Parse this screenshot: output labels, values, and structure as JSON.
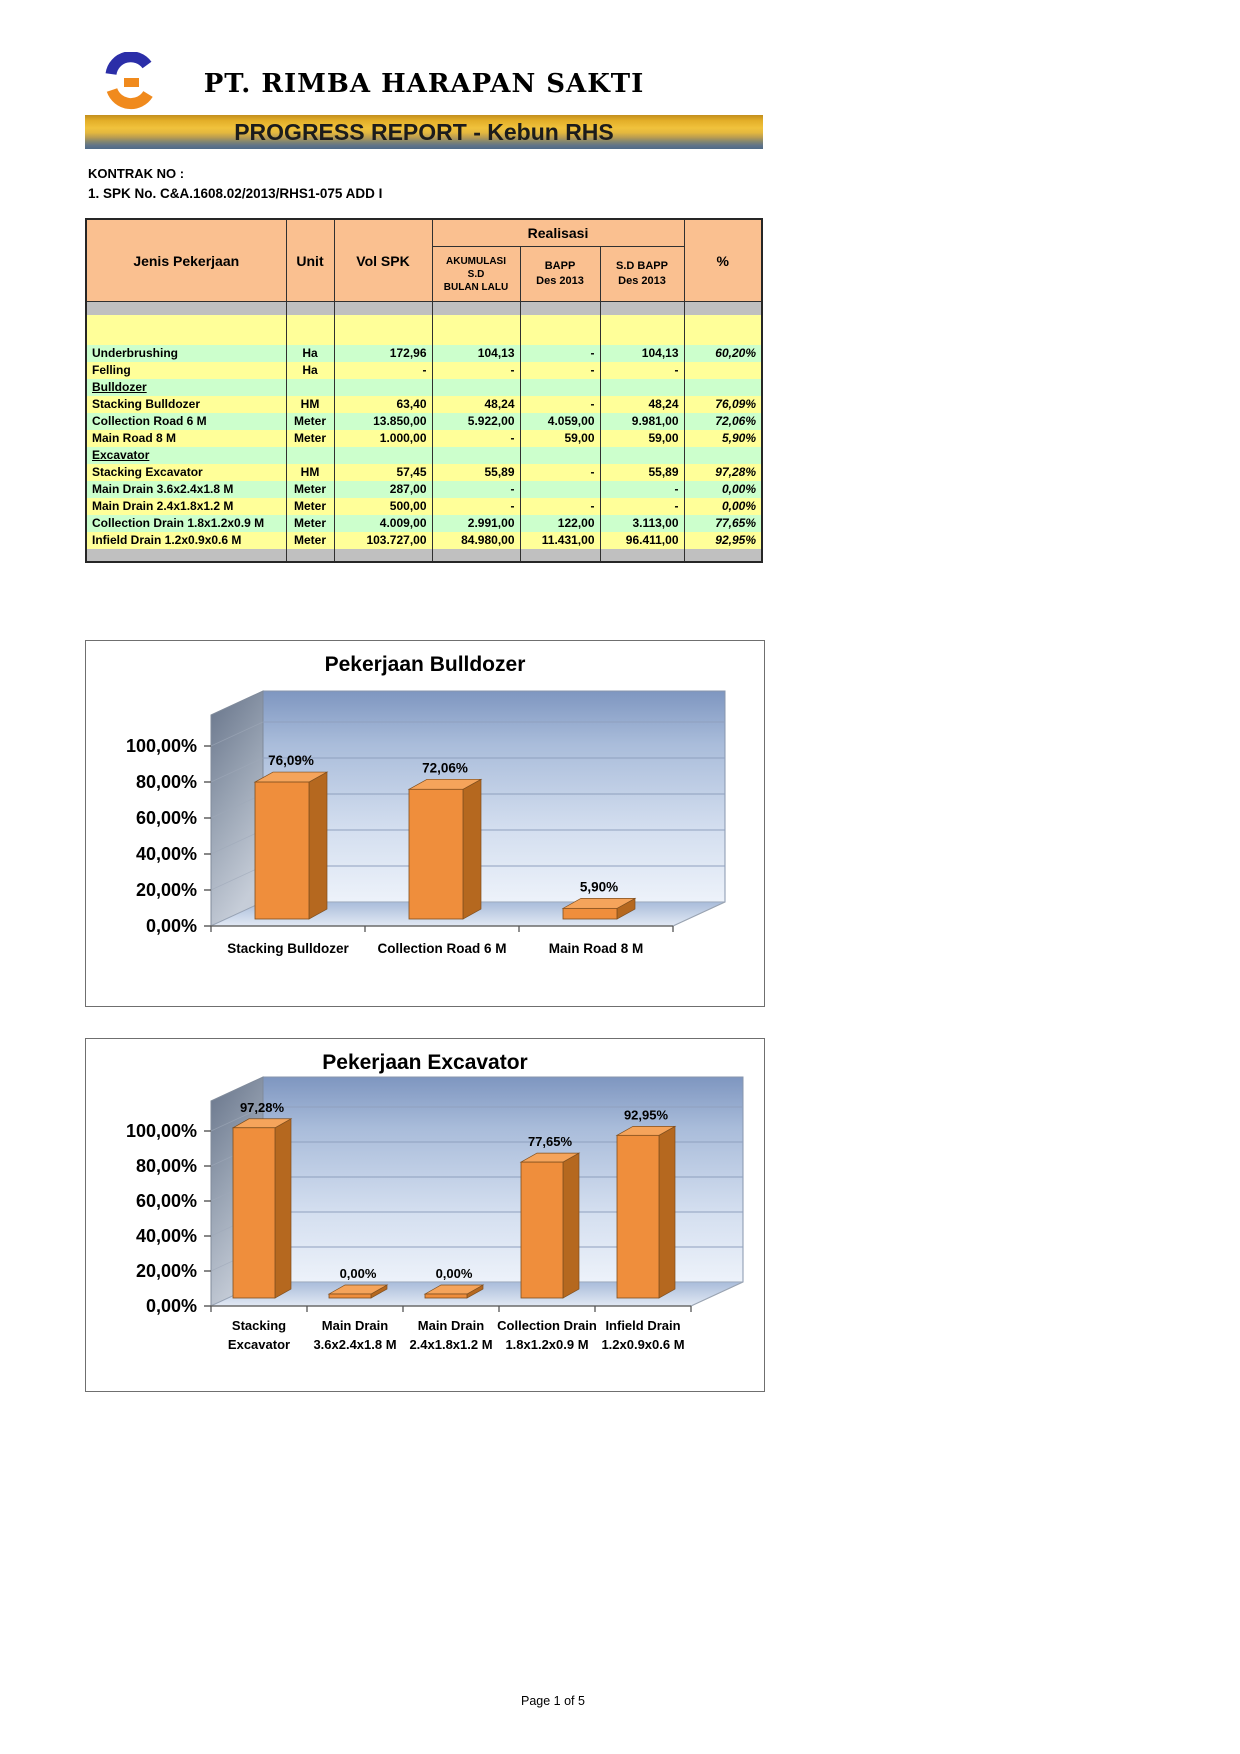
{
  "header": {
    "company": "PT. RIMBA HARAPAN SAKTI",
    "banner": "PROGRESS REPORT - Kebun RHS",
    "kontrak_label": "KONTRAK NO :",
    "kontrak_value": "1. SPK No. C&A.1608.02/2013/RHS1-075 ADD I",
    "logo_icon": "fg-monogram-logo",
    "logo_colors": {
      "blue": "#2B2EA8",
      "orange": "#F08A1D"
    }
  },
  "table": {
    "col_headers": {
      "jenis": "Jenis Pekerjaan",
      "unit": "Unit",
      "vol_spk": "Vol SPK",
      "realisasi": "Realisasi",
      "akumulasi": "AKUMULASI\nS.D\nBULAN LALU",
      "bapp": "BAPP\nDes 2013",
      "sd_bapp": "S.D BAPP\nDes 2013",
      "pct": "%"
    },
    "rows": [
      {
        "type": "empty",
        "label": "",
        "unit": "",
        "vol": "",
        "akum": "",
        "bapp": "",
        "sd": "",
        "pct": "",
        "bg": "yellow"
      },
      {
        "type": "data",
        "label": "Underbrushing",
        "unit": "Ha",
        "vol": "172,96",
        "akum": "104,13",
        "bapp": "-",
        "sd": "104,13",
        "pct": "60,20%",
        "bg": "green"
      },
      {
        "type": "data",
        "label": "Felling",
        "unit": "Ha",
        "vol": "-",
        "akum": "-",
        "bapp": "-",
        "sd": "-",
        "pct": "",
        "bg": "yellow"
      },
      {
        "type": "section",
        "label": "Bulldozer",
        "unit": "",
        "vol": "",
        "akum": "",
        "bapp": "",
        "sd": "",
        "pct": "",
        "bg": "green"
      },
      {
        "type": "data",
        "label": "Stacking Bulldozer",
        "unit": "HM",
        "vol": "63,40",
        "akum": "48,24",
        "bapp": "-",
        "sd": "48,24",
        "pct": "76,09%",
        "bg": "yellow"
      },
      {
        "type": "data",
        "label": "Collection Road 6 M",
        "unit": "Meter",
        "vol": "13.850,00",
        "akum": "5.922,00",
        "bapp": "4.059,00",
        "sd": "9.981,00",
        "pct": "72,06%",
        "bg": "green"
      },
      {
        "type": "data",
        "label": "Main Road 8 M",
        "unit": "Meter",
        "vol": "1.000,00",
        "akum": "-",
        "bapp": "59,00",
        "sd": "59,00",
        "pct": "5,90%",
        "bg": "yellow"
      },
      {
        "type": "section",
        "label": "Excavator",
        "unit": "",
        "vol": "",
        "akum": "",
        "bapp": "",
        "sd": "",
        "pct": "",
        "bg": "green"
      },
      {
        "type": "data",
        "label": "Stacking Excavator",
        "unit": "HM",
        "vol": "57,45",
        "akum": "55,89",
        "bapp": "-",
        "sd": "55,89",
        "pct": "97,28%",
        "bg": "yellow"
      },
      {
        "type": "data",
        "label": "Main Drain 3.6x2.4x1.8 M",
        "unit": "Meter",
        "vol": "287,00",
        "akum": "-",
        "bapp": "",
        "sd": "-",
        "pct": "0,00%",
        "bg": "green"
      },
      {
        "type": "data",
        "label": "Main Drain 2.4x1.8x1.2 M",
        "unit": "Meter",
        "vol": "500,00",
        "akum": "-",
        "bapp": "-",
        "sd": "-",
        "pct": "0,00%",
        "bg": "yellow"
      },
      {
        "type": "data",
        "label": "Collection Drain 1.8x1.2x0.9 M",
        "unit": "Meter",
        "vol": "4.009,00",
        "akum": "2.991,00",
        "bapp": "122,00",
        "sd": "3.113,00",
        "pct": "77,65%",
        "bg": "green"
      },
      {
        "type": "data",
        "label": "Infield Drain 1.2x0.9x0.6 M",
        "unit": "Meter",
        "vol": "103.727,00",
        "akum": "84.980,00",
        "bapp": "11.431,00",
        "sd": "96.411,00",
        "pct": "92,95%",
        "bg": "yellow"
      }
    ]
  },
  "chart_data": [
    {
      "type": "bar",
      "style": "3d-column",
      "title": "Pekerjaan Bulldozer",
      "categories": [
        [
          "Stacking Bulldozer"
        ],
        [
          "Collection Road 6 M"
        ],
        [
          "Main Road 8 M"
        ]
      ],
      "values": [
        76.09,
        72.06,
        5.9
      ],
      "value_labels": [
        "76,09%",
        "72,06%",
        "5,90%"
      ],
      "yticks": [
        "0,00%",
        "20,00%",
        "40,00%",
        "60,00%",
        "80,00%",
        "100,00%"
      ],
      "ylim": [
        0,
        100
      ],
      "xlabel": "",
      "ylabel": "",
      "legend": "none",
      "grid": true,
      "bar_color": "#EF8E3C"
    },
    {
      "type": "bar",
      "style": "3d-column",
      "title": "Pekerjaan Excavator",
      "categories": [
        [
          "Stacking",
          "Excavator"
        ],
        [
          "Main Drain",
          "3.6x2.4x1.8 M"
        ],
        [
          "Main Drain",
          "2.4x1.8x1.2 M"
        ],
        [
          "Collection Drain",
          "1.8x1.2x0.9 M"
        ],
        [
          "Infield Drain",
          "1.2x0.9x0.6 M"
        ]
      ],
      "values": [
        97.28,
        0.0,
        0.0,
        77.65,
        92.95
      ],
      "value_labels": [
        "97,28%",
        "0,00%",
        "0,00%",
        "77,65%",
        "92,95%"
      ],
      "yticks": [
        "0,00%",
        "20,00%",
        "40,00%",
        "60,00%",
        "80,00%",
        "100,00%"
      ],
      "ylim": [
        0,
        100
      ],
      "xlabel": "",
      "ylabel": "",
      "legend": "none",
      "grid": true,
      "bar_color": "#EF8E3C"
    }
  ],
  "colors": {
    "table_header_bg": "#FAC090",
    "row_green": "#CCFFCC",
    "row_yellow": "#FFFF99",
    "row_gray": "#C0C0C0",
    "bar_front": "#EF8E3C",
    "bar_side": "#B5681F",
    "bar_top": "#F5A45B",
    "banner_gold": "#E8B32A",
    "banner_slate": "#56708E"
  },
  "footer": {
    "page": "Page 1 of 5"
  }
}
